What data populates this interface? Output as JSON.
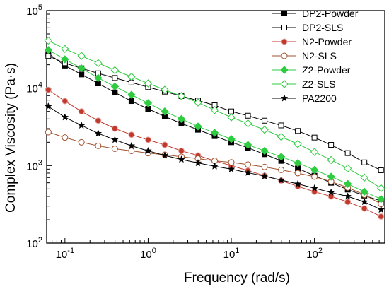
{
  "chart_data": {
    "type": "line",
    "title": "",
    "xlabel": "Frequency (rad/s)",
    "ylabel": "Complex Viscosity (Pa·s)",
    "xscale": "log",
    "yscale": "log",
    "xlim": [
      0.0603,
      700
    ],
    "ylim": [
      100,
      100000
    ],
    "grid": false,
    "legend_position": "top-right",
    "x_ticks": [
      {
        "label": "10",
        "sup": "-1"
      },
      {
        "label": "10",
        "sup": "0"
      },
      {
        "label": "10",
        "sup": "1"
      },
      {
        "label": "10",
        "sup": "2"
      }
    ],
    "y_ticks": [
      {
        "label": "10",
        "sup": "2"
      },
      {
        "label": "10",
        "sup": "3"
      },
      {
        "label": "10",
        "sup": "4"
      },
      {
        "label": "10",
        "sup": "5"
      }
    ],
    "x": [
      0.0631,
      0.1,
      0.158,
      0.251,
      0.398,
      0.631,
      1.0,
      1.585,
      2.512,
      3.981,
      6.31,
      10.0,
      15.85,
      25.12,
      39.81,
      63.1,
      100.0,
      158.5,
      251.2,
      398.1,
      631.0
    ],
    "series": [
      {
        "name": "DP2-Powder",
        "marker": "square",
        "filled": true,
        "color": "#000000",
        "values": [
          28000,
          19500,
          15000,
          11500,
          8800,
          6800,
          5400,
          4300,
          3500,
          2900,
          2400,
          2000,
          1700,
          1400,
          1150,
          920,
          740,
          600,
          490,
          410,
          350
        ]
      },
      {
        "name": "DP2-SLS",
        "marker": "square",
        "filled": false,
        "color": "#000000",
        "values": [
          26000,
          21000,
          18000,
          15500,
          13500,
          11800,
          10300,
          9000,
          7900,
          6900,
          6000,
          5000,
          4400,
          3800,
          3300,
          2800,
          2300,
          1850,
          1450,
          1100,
          870
        ]
      },
      {
        "name": "N2-Powder",
        "marker": "circle",
        "filled": true,
        "color": "#c0392b",
        "values": [
          9500,
          6800,
          5000,
          3800,
          3000,
          2500,
          2150,
          1850,
          1550,
          1350,
          1150,
          1000,
          860,
          740,
          640,
          540,
          460,
          400,
          340,
          280,
          220
        ]
      },
      {
        "name": "N2-SLS",
        "marker": "circle",
        "filled": false,
        "color": "#a0522d",
        "values": [
          2700,
          2300,
          2000,
          1800,
          1650,
          1550,
          1450,
          1380,
          1300,
          1230,
          1150,
          1100,
          1030,
          960,
          880,
          800,
          720,
          620,
          520,
          420,
          320
        ]
      },
      {
        "name": "Z2-Powder",
        "marker": "diamond",
        "filled": true,
        "color": "#2ecc40",
        "values": [
          31000,
          23500,
          18000,
          13500,
          10500,
          8200,
          6400,
          5000,
          4000,
          3200,
          2650,
          2200,
          1850,
          1550,
          1300,
          1080,
          880,
          720,
          580,
          460,
          370
        ]
      },
      {
        "name": "Z2-SLS",
        "marker": "diamond",
        "filled": false,
        "color": "#2ecc40",
        "values": [
          41000,
          32000,
          26000,
          21000,
          17000,
          14000,
          11500,
          9500,
          7900,
          6500,
          5200,
          4200,
          3500,
          2900,
          2350,
          1900,
          1500,
          1180,
          920,
          700,
          510
        ]
      },
      {
        "name": "PA2200",
        "marker": "star",
        "filled": true,
        "color": "#000000",
        "values": [
          5800,
          4200,
          3300,
          2600,
          2150,
          1800,
          1550,
          1350,
          1200,
          1080,
          980,
          900,
          810,
          730,
          650,
          580,
          510,
          450,
          400,
          340,
          270
        ]
      }
    ]
  }
}
